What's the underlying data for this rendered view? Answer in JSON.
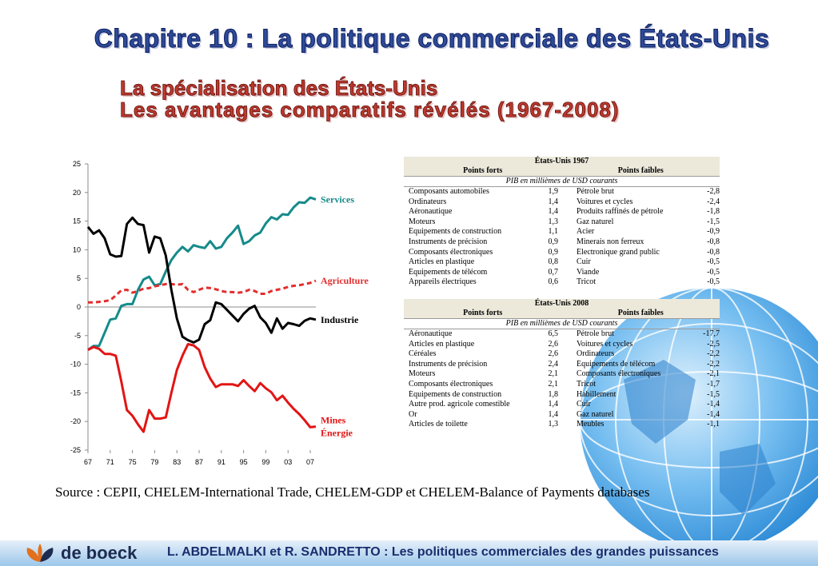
{
  "title": "Chapitre 10 : La politique commerciale des États-Unis",
  "subtitle_1": "La spécialisation des États-Unis",
  "subtitle_2": "Les avantages comparatifs révélés (1967-2008)",
  "chart_data": {
    "type": "line",
    "x": [
      67,
      68,
      69,
      70,
      71,
      72,
      73,
      74,
      75,
      76,
      77,
      78,
      79,
      80,
      81,
      82,
      83,
      84,
      85,
      86,
      87,
      88,
      89,
      90,
      91,
      92,
      93,
      94,
      95,
      96,
      97,
      98,
      99,
      100,
      101,
      102,
      103,
      104,
      105,
      106,
      107,
      108
    ],
    "x_tick_labels": [
      "67",
      "71",
      "75",
      "79",
      "83",
      "87",
      "91",
      "95",
      "99",
      "03",
      "07"
    ],
    "ylim": [
      -25,
      25
    ],
    "y_ticks": [
      25,
      20,
      15,
      10,
      5,
      0,
      -5,
      -10,
      -15,
      -20,
      -25
    ],
    "series": [
      {
        "name": "Services",
        "color": "#168a8a",
        "values": [
          -7.5,
          -6.8,
          -6.8,
          -4.5,
          -2.2,
          -2,
          0.2,
          0.5,
          0.5,
          3,
          4.8,
          5.3,
          3.8,
          4,
          6.2,
          8.2,
          9.5,
          10.5,
          9.7,
          10.8,
          10.5,
          10.3,
          11.5,
          10.2,
          10.5,
          12,
          13,
          14.2,
          11,
          11.5,
          12.5,
          13,
          14.6,
          15.7,
          15.3,
          16.2,
          16.1,
          17.4,
          18.3,
          18.2,
          19.1,
          18.8
        ]
      },
      {
        "name": "Agriculture",
        "color": "#e32e2e",
        "dashed": true,
        "values": [
          0.8,
          0.8,
          0.9,
          1.0,
          1.2,
          2.0,
          2.9,
          3.0,
          2.5,
          2.8,
          3.2,
          3.3,
          3.6,
          3.8,
          4.0,
          4.0,
          3.9,
          4.0,
          3.0,
          2.6,
          3.0,
          3.4,
          3.3,
          3.1,
          2.8,
          2.6,
          2.6,
          2.5,
          2.6,
          3.0,
          2.8,
          2.3,
          2.3,
          2.8,
          3.0,
          3.2,
          3.5,
          3.7,
          3.8,
          4.0,
          4.2,
          4.6
        ]
      },
      {
        "name": "Industrie",
        "color": "#000000",
        "values": [
          14,
          12.8,
          13.4,
          12,
          9.2,
          8.8,
          8.9,
          14.5,
          15.6,
          14.5,
          14.3,
          9.5,
          12.3,
          12,
          9,
          3,
          -2,
          -5.2,
          -5.8,
          -6.2,
          -5.7,
          -3,
          -2.3,
          0.8,
          0.5,
          -0.5,
          -1.5,
          -2.5,
          -1.2,
          -0.3,
          0.2,
          -1.8,
          -2.8,
          -4.5,
          -2,
          -3.8,
          -2.8,
          -3,
          -3.3,
          -2.4,
          -2,
          -2.2
        ]
      },
      {
        "name": "Mines Énergie",
        "label_lines": [
          "Mines",
          "Énergie"
        ],
        "color": "#e31414",
        "values": [
          -7.5,
          -7,
          -7.3,
          -8.2,
          -8.2,
          -8.5,
          -13,
          -18,
          -19,
          -20.5,
          -21.8,
          -18,
          -19.5,
          -19.5,
          -19.3,
          -15,
          -11,
          -8.5,
          -6.5,
          -6.7,
          -7.5,
          -10.5,
          -12.5,
          -14,
          -13.5,
          -13.5,
          -13.5,
          -13.8,
          -12.8,
          -13.8,
          -14.7,
          -13.3,
          -14.2,
          -14.9,
          -16.3,
          -15.5,
          -16.7,
          -17.8,
          -18.7,
          -19.8,
          -21,
          -20.9
        ]
      }
    ]
  },
  "table_1967": {
    "title": "États-Unis 1967",
    "col_strong": "Points forts",
    "col_weak": "Points faibles",
    "unit": "PIB en millièmes de USD courants",
    "rows": [
      {
        "strong": "Composants automobiles",
        "sv": "1,9",
        "weak": "Pétrole brut",
        "wv": "-2,8"
      },
      {
        "strong": "Ordinateurs",
        "sv": "1,4",
        "weak": "Voitures et cycles",
        "wv": "-2,4"
      },
      {
        "strong": "Aéronautique",
        "sv": "1,4",
        "weak": "Produits raffinés de pétrole",
        "wv": "-1,8"
      },
      {
        "strong": "Moteurs",
        "sv": "1,3",
        "weak": "Gaz naturel",
        "wv": "-1,5"
      },
      {
        "strong": "Équipements de construction",
        "sv": "1,1",
        "weak": "Acier",
        "wv": "-0,9"
      },
      {
        "strong": "Instruments de précision",
        "sv": "0,9",
        "weak": "Minerais non ferreux",
        "wv": "-0,8"
      },
      {
        "strong": "Composants électroniques",
        "sv": "0,9",
        "weak": "Électronique grand public",
        "wv": "-0,8"
      },
      {
        "strong": "Articles en plastique",
        "sv": "0,8",
        "weak": "Cuir",
        "wv": "-0,5"
      },
      {
        "strong": "Équipements de télécom",
        "sv": "0,7",
        "weak": "Viande",
        "wv": "-0,5"
      },
      {
        "strong": "Appareils électriques",
        "sv": "0,6",
        "weak": "Tricot",
        "wv": "-0,5"
      }
    ]
  },
  "table_2008": {
    "title": "États-Unis 2008",
    "col_strong": "Points forts",
    "col_weak": "Points faibles",
    "unit": "PIB en millièmes de USD courants",
    "rows": [
      {
        "strong": "Aéronautique",
        "sv": "6,5",
        "weak": "Pétrole brut",
        "wv": "-17,7"
      },
      {
        "strong": "Articles en plastique",
        "sv": "2,6",
        "weak": "Voitures et cycles",
        "wv": "-2,5"
      },
      {
        "strong": "Céréales",
        "sv": "2,6",
        "weak": "Ordinateurs",
        "wv": "-2,2"
      },
      {
        "strong": "Instruments de précision",
        "sv": "2,4",
        "weak": "Équipements de télécom",
        "wv": "-2,2"
      },
      {
        "strong": "Moteurs",
        "sv": "2,1",
        "weak": "Composants électroniques",
        "wv": "-2,1"
      },
      {
        "strong": "Composants électroniques",
        "sv": "2,1",
        "weak": "Tricot",
        "wv": "-1,7"
      },
      {
        "strong": "Équipements de construction",
        "sv": "1,8",
        "weak": "Habillement",
        "wv": "-1,5"
      },
      {
        "strong": "Autre prod. agricole comestible",
        "sv": "1,4",
        "weak": "Cuir",
        "wv": "-1,4"
      },
      {
        "strong": "Or",
        "sv": "1,4",
        "weak": "Gaz naturel",
        "wv": "-1,4"
      },
      {
        "strong": "Articles de toilette",
        "sv": "1,3",
        "weak": "Meubles",
        "wv": "-1,1"
      }
    ]
  },
  "source": "Source : CEPII, CHELEM-International Trade, CHELEM-GDP et CHELEM-Balance of Payments databases",
  "footer": {
    "logo_text": "de boeck",
    "text": "L. ABDELMALKI et R. SANDRETTO : Les politiques commerciales des grandes puissances"
  },
  "colors": {
    "title": "#2e4b9a",
    "subtitle": "#c0392b",
    "footer_bg": "#9cc7ea",
    "globe": "#3a9fe0"
  }
}
